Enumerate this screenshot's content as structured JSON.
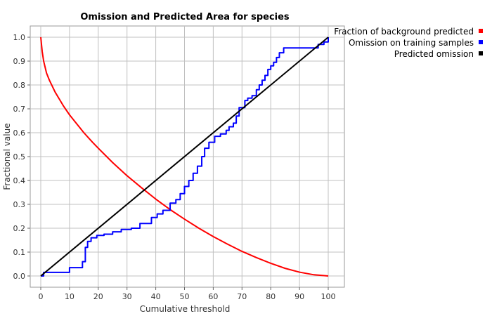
{
  "chart_data": {
    "type": "line",
    "title": "Omission and Predicted Area for species",
    "xlabel": "Cumulative threshold",
    "ylabel": "Fractional value",
    "xlim": [
      0,
      100
    ],
    "ylim": [
      0,
      1
    ],
    "x_ticks": [
      0,
      10,
      20,
      30,
      40,
      50,
      60,
      70,
      80,
      90,
      100
    ],
    "y_ticks": [
      0.0,
      0.1,
      0.2,
      0.3,
      0.4,
      0.5,
      0.6,
      0.7,
      0.8,
      0.9,
      1.0
    ],
    "y_tick_labels": [
      "0.0",
      "0.1",
      "0.2",
      "0.3",
      "0.4",
      "0.5",
      "0.6",
      "0.7",
      "0.8",
      "0.9",
      "1.0"
    ],
    "grid": true,
    "legend_position": "top-right outside",
    "series": [
      {
        "name": "Fraction of background predicted",
        "color": "#ff0000",
        "style": "smooth",
        "x": [
          0,
          0.5,
          1,
          2,
          3,
          4,
          5,
          6,
          8,
          10,
          12,
          15,
          18,
          20,
          25,
          30,
          35,
          40,
          45,
          50,
          55,
          60,
          65,
          70,
          75,
          80,
          85,
          90,
          95,
          100
        ],
        "y": [
          1.0,
          0.94,
          0.9,
          0.85,
          0.82,
          0.795,
          0.77,
          0.75,
          0.71,
          0.675,
          0.645,
          0.6,
          0.56,
          0.535,
          0.475,
          0.42,
          0.37,
          0.322,
          0.278,
          0.238,
          0.2,
          0.165,
          0.133,
          0.103,
          0.077,
          0.053,
          0.032,
          0.016,
          0.005,
          0.0
        ]
      },
      {
        "name": "Omission on training samples",
        "color": "#0000ff",
        "style": "step",
        "x": [
          0,
          1,
          10,
          14.5,
          15.5,
          16.3,
          17.5,
          19.5,
          22,
          25,
          28,
          31.5,
          34.5,
          38.5,
          40.5,
          42.5,
          45,
          47,
          48.5,
          50,
          51.5,
          53,
          54.5,
          56,
          57,
          58.5,
          60.5,
          62.5,
          64.5,
          65.5,
          67,
          68,
          69,
          71,
          72,
          73.5,
          75,
          76,
          77,
          78,
          79,
          80,
          81,
          82,
          83,
          84.5,
          94.5,
          96.5,
          98.5,
          100
        ],
        "y": [
          0.0,
          0.015,
          0.035,
          0.06,
          0.12,
          0.145,
          0.16,
          0.17,
          0.175,
          0.185,
          0.195,
          0.2,
          0.22,
          0.245,
          0.26,
          0.275,
          0.305,
          0.32,
          0.345,
          0.375,
          0.4,
          0.43,
          0.46,
          0.5,
          0.535,
          0.56,
          0.585,
          0.595,
          0.61,
          0.625,
          0.64,
          0.67,
          0.705,
          0.735,
          0.745,
          0.755,
          0.78,
          0.8,
          0.82,
          0.84,
          0.865,
          0.88,
          0.895,
          0.915,
          0.935,
          0.955,
          0.955,
          0.97,
          0.98,
          1.0
        ]
      },
      {
        "name": "Predicted omission",
        "color": "#000000",
        "style": "straight",
        "x": [
          0,
          100
        ],
        "y": [
          0,
          1
        ]
      }
    ]
  }
}
